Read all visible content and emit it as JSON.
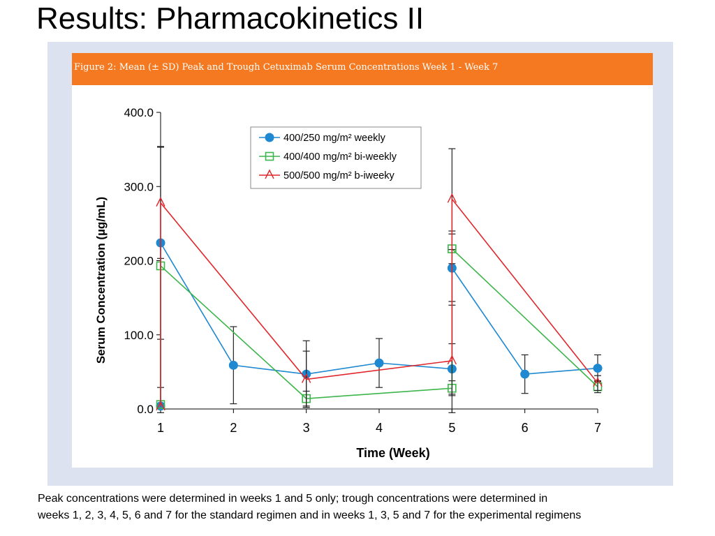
{
  "slide": {
    "title": "Results: Pharmacokinetics II",
    "footnote_line1": "Peak concentrations were determined in weeks 1 and 5 only; trough concentrations were determined in",
    "footnote_line2": "weeks 1, 2, 3, 4, 5, 6 and 7 for the standard regimen and in weeks 1, 3, 5 and 7 for the experimental regimens"
  },
  "figure": {
    "caption": "Figure 2: Mean (± SD) Peak and Trough Cetuximab Serum Concentrations Week 1 - Week 7",
    "banner_color": "#f47920",
    "frame_color": "#dde2f0"
  },
  "chart_data": {
    "type": "line",
    "xlabel": "Time (Week)",
    "ylabel": "Serum Concentration (µg/mL)",
    "xlim": [
      1,
      7
    ],
    "ylim": [
      0,
      400
    ],
    "x_ticks": [
      1,
      2,
      3,
      4,
      5,
      6,
      7
    ],
    "y_ticks": [
      "0.0",
      "100.0",
      "200.0",
      "300.0",
      "400.0"
    ],
    "y_tick_values": [
      0,
      100,
      200,
      300,
      400
    ],
    "grid": false,
    "legend_position": "top-center",
    "series": [
      {
        "name": "400/250 mg/m² weekly",
        "color": "#1e88d0",
        "marker": "circle",
        "points": [
          {
            "x": 1,
            "y": 4,
            "sd": 25
          },
          {
            "x": 1,
            "y": 224,
            "sd": 130
          },
          {
            "x": 2,
            "y": 59,
            "sd": 52
          },
          {
            "x": 3,
            "y": 47,
            "sd": 45
          },
          {
            "x": 4,
            "y": 62,
            "sd": 33
          },
          {
            "x": 5,
            "y": 54,
            "sd": 34
          },
          {
            "x": 5,
            "y": 190,
            "sd": 50
          },
          {
            "x": 6,
            "y": 47,
            "sd": 26
          },
          {
            "x": 7,
            "y": 55,
            "sd": 18
          }
        ]
      },
      {
        "name": "400/400 mg/m² bi-weekly",
        "color": "#3cb54a",
        "marker": "square",
        "points": [
          {
            "x": 1,
            "y": 6,
            "sd": 0
          },
          {
            "x": 1,
            "y": 193,
            "sd": 0
          },
          {
            "x": 3,
            "y": 14,
            "sd": 10
          },
          {
            "x": 5,
            "y": 28,
            "sd": 10
          },
          {
            "x": 5,
            "y": 216,
            "sd": 20
          },
          {
            "x": 7,
            "y": 30,
            "sd": 8
          }
        ]
      },
      {
        "name": "500/500 mg/m² b-iweeky",
        "color": "#e0262b",
        "marker": "triangle",
        "points": [
          {
            "x": 1,
            "y": 3,
            "sd": 0
          },
          {
            "x": 1,
            "y": 278,
            "sd": 75
          },
          {
            "x": 3,
            "y": 40,
            "sd": 38
          },
          {
            "x": 5,
            "y": 65,
            "sd": 80
          },
          {
            "x": 5,
            "y": 283,
            "sd": 68
          },
          {
            "x": 7,
            "y": 35,
            "sd": 10
          }
        ]
      }
    ]
  }
}
